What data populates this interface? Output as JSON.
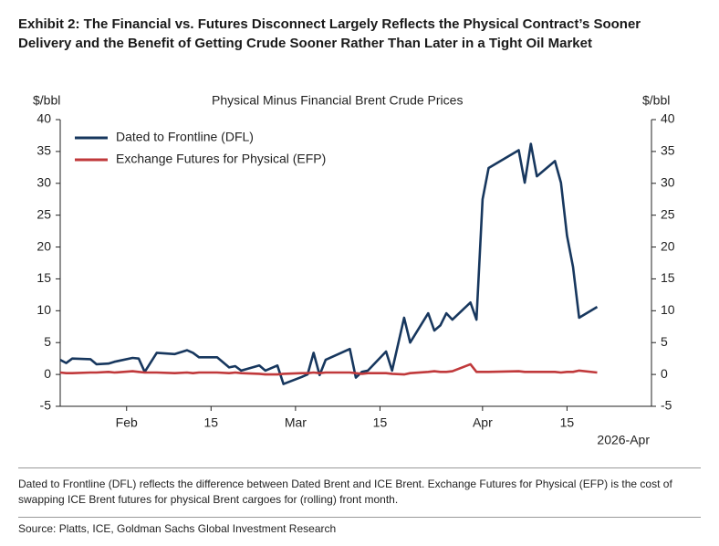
{
  "exhibit_title": "Exhibit 2: The Financial vs. Futures Disconnect Largely Reflects the Physical Contract’s Sooner Delivery and the Benefit of Getting Crude Sooner Rather Than Later in a Tight Oil Market",
  "chart_data": {
    "type": "line",
    "title": "Physical Minus Financial Brent Crude Prices",
    "ylabel": "$/bbl",
    "y2label": "$/bbl",
    "x_note": "2026-Apr",
    "x": [
      "2026-01-21",
      "2026-01-22",
      "2026-01-23",
      "2026-01-26",
      "2026-01-27",
      "2026-01-29",
      "2026-01-30",
      "2026-02-02",
      "2026-02-03",
      "2026-02-04",
      "2026-02-06",
      "2026-02-09",
      "2026-02-11",
      "2026-02-12",
      "2026-02-13",
      "2026-02-16",
      "2026-02-18",
      "2026-02-19",
      "2026-02-20",
      "2026-02-23",
      "2026-02-24",
      "2026-02-26",
      "2026-02-27",
      "2026-03-02",
      "2026-03-03",
      "2026-03-04",
      "2026-03-05",
      "2026-03-06",
      "2026-03-10",
      "2026-03-11",
      "2026-03-12",
      "2026-03-13",
      "2026-03-16",
      "2026-03-17",
      "2026-03-19",
      "2026-03-20",
      "2026-03-23",
      "2026-03-24",
      "2026-03-25",
      "2026-03-26",
      "2026-03-27",
      "2026-03-30",
      "2026-03-31",
      "2026-04-01",
      "2026-04-02",
      "2026-04-07",
      "2026-04-08",
      "2026-04-09",
      "2026-04-10",
      "2026-04-13",
      "2026-04-14",
      "2026-04-15",
      "2026-04-16",
      "2026-04-17",
      "2026-04-20"
    ],
    "series": [
      {
        "name": "Dated to Frontline (DFL)",
        "color": "#17375e",
        "values": [
          2.3,
          1.8,
          2.5,
          2.4,
          1.6,
          1.7,
          2.0,
          2.6,
          2.5,
          0.4,
          3.4,
          3.2,
          3.8,
          3.4,
          2.7,
          2.7,
          1.1,
          1.3,
          0.6,
          1.4,
          0.6,
          1.4,
          -1.5,
          -0.4,
          0,
          3.4,
          -0.1,
          2.3,
          4.0,
          -0.5,
          0.4,
          0.6,
          3.6,
          0.6,
          8.9,
          5.0,
          9.6,
          6.9,
          7.7,
          9.6,
          8.6,
          11.3,
          8.6,
          27.5,
          32.4,
          35.2,
          30.1,
          36.2,
          31.1,
          33.5,
          30.1,
          21.8,
          16.9,
          8.9,
          10.6
        ]
      },
      {
        "name": "Exchange Futures for Physical (EFP)",
        "color": "#c0393b",
        "values": [
          0.3,
          0.2,
          0.2,
          0.3,
          0.3,
          0.4,
          0.3,
          0.5,
          0.4,
          0.3,
          0.3,
          0.2,
          0.3,
          0.2,
          0.3,
          0.3,
          0.2,
          0.3,
          0.2,
          0.1,
          0.0,
          0.0,
          0.1,
          0.2,
          0.2,
          0.3,
          0.2,
          0.3,
          0.3,
          0.2,
          0.1,
          0.2,
          0.2,
          0.1,
          0.0,
          0.2,
          0.4,
          0.5,
          0.4,
          0.4,
          0.5,
          1.6,
          0.4,
          0.4,
          0.4,
          0.5,
          0.4,
          0.4,
          0.4,
          0.4,
          0.3,
          0.4,
          0.4,
          0.6,
          0.3
        ]
      }
    ],
    "xlim": [
      "2026-01-21",
      "2026-04-29"
    ],
    "xticks": [
      {
        "value": "2026-02-01",
        "label": "Feb"
      },
      {
        "value": "2026-02-15",
        "label": "15"
      },
      {
        "value": "2026-03-01",
        "label": "Mar"
      },
      {
        "value": "2026-03-15",
        "label": "15"
      },
      {
        "value": "2026-04-01",
        "label": "Apr"
      },
      {
        "value": "2026-04-15",
        "label": "15"
      }
    ],
    "ylim": [
      -5,
      40
    ],
    "yticks": [
      -5,
      0,
      5,
      10,
      15,
      20,
      25,
      30,
      35,
      40
    ],
    "y2lim": [
      -5,
      40
    ],
    "y2ticks": [
      -5,
      0,
      5,
      10,
      15,
      20,
      25,
      30,
      35,
      40
    ],
    "legend": "upper-left",
    "grid": false
  },
  "footnote": "Dated to Frontline (DFL) reflects the difference between Dated Brent and ICE Brent. Exchange Futures for Physical (EFP) is the cost of swapping ICE Brent futures for physical Brent cargoes for (rolling) front month.",
  "source": "Source: Platts, ICE, Goldman Sachs Global Investment Research"
}
